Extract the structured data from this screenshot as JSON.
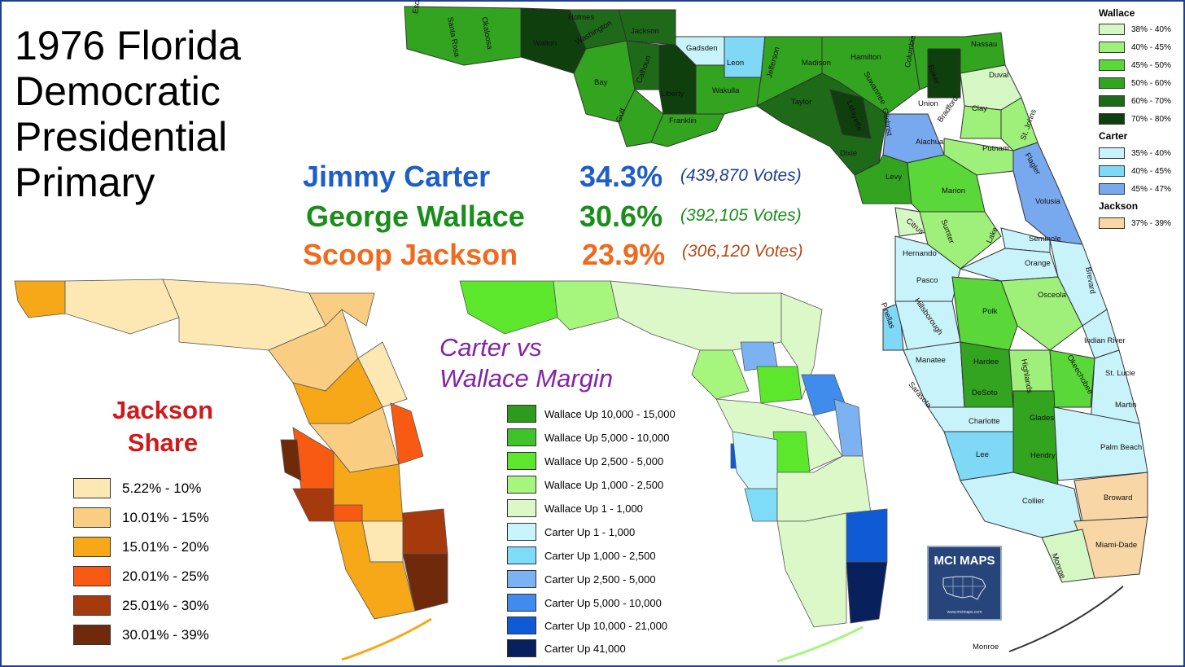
{
  "title": [
    "1976 Florida",
    "Democratic",
    "Presidential",
    "Primary"
  ],
  "results": [
    {
      "name": "Jimmy Carter",
      "pct": "34.3%",
      "votes": "(439,870  Votes)",
      "color": "#1d5fc7"
    },
    {
      "name": "George Wallace",
      "pct": "30.6%",
      "votes": "(392,105  Votes)",
      "color": "#1a8e1a"
    },
    {
      "name": "Scoop Jackson",
      "pct": "23.9%",
      "votes": "(306,120  Votes)",
      "color": "#f06a1e"
    }
  ],
  "jackson_map": {
    "title": [
      "Jackson",
      "Share"
    ],
    "legend": [
      {
        "label": "5.22% - 10%",
        "color": "#fde8b4"
      },
      {
        "label": "10.01% - 15%",
        "color": "#f9cd82"
      },
      {
        "label": "15.01% - 20%",
        "color": "#f6a818"
      },
      {
        "label": "20.01% - 25%",
        "color": "#f95a13"
      },
      {
        "label": "25.01% - 30%",
        "color": "#a63a0c"
      },
      {
        "label": "30.01% - 39%",
        "color": "#6f2a0c"
      }
    ]
  },
  "margin_map": {
    "title": [
      "Carter vs",
      "Wallace Margin"
    ],
    "legend": [
      {
        "label": "Wallace Up 10,000 - 15,000",
        "color": "#2e9a1e"
      },
      {
        "label": "Wallace Up 5,000 - 10,000",
        "color": "#3fc22a"
      },
      {
        "label": "Wallace Up 2,500 - 5,000",
        "color": "#5ce62c"
      },
      {
        "label": "Wallace Up 1,000 - 2,500",
        "color": "#a6f57d"
      },
      {
        "label": "Wallace Up 1 - 1,000",
        "color": "#dcf8c8"
      },
      {
        "label": "Carter Up 1 - 1,000",
        "color": "#c9f4fb"
      },
      {
        "label": "Carter Up 1,000 - 2,500",
        "color": "#7fdcf8"
      },
      {
        "label": "Carter Up 2,500 - 5,000",
        "color": "#7cb2f2"
      },
      {
        "label": "Carter Up 5,000 - 10,000",
        "color": "#3f8ced"
      },
      {
        "label": "Carter Up 10,000 - 21,000",
        "color": "#0f5bd6"
      },
      {
        "label": "Carter Up 41,000",
        "color": "#08205c"
      }
    ]
  },
  "county_map": {
    "legend_groups": [
      {
        "name": "Wallace",
        "items": [
          {
            "label": "38% - 40%",
            "color": "#d5f7c4"
          },
          {
            "label": "40% - 45%",
            "color": "#9ff07a"
          },
          {
            "label": "45% - 50%",
            "color": "#5ad83a"
          },
          {
            "label": "50% - 60%",
            "color": "#33a41f"
          },
          {
            "label": "60% - 70%",
            "color": "#1e6a19"
          },
          {
            "label": "70% - 80%",
            "color": "#0f3f0d"
          }
        ]
      },
      {
        "name": "Carter",
        "items": [
          {
            "label": "35% - 40%",
            "color": "#c8f3fb"
          },
          {
            "label": "40% - 45%",
            "color": "#7fd8f6"
          },
          {
            "label": "45% - 47%",
            "color": "#78a9ee"
          }
        ]
      },
      {
        "name": "Jackson",
        "items": [
          {
            "label": "37% - 39%",
            "color": "#f9d6a6"
          }
        ]
      }
    ],
    "counties": [
      "Escambia",
      "Santa Rosa",
      "Okaloosa",
      "Walton",
      "Holmes",
      "Washington",
      "Jackson",
      "Bay",
      "Calhoun",
      "Gulf",
      "Liberty",
      "Gadsden",
      "Leon",
      "Franklin",
      "Wakulla",
      "Jefferson",
      "Madison",
      "Hamilton",
      "Taylor",
      "Suwannee",
      "Columbia",
      "Lafayette",
      "Gilchrist",
      "Union",
      "Baker",
      "Bradford",
      "Nassau",
      "Duval",
      "Clay",
      "St. Johns",
      "Alachua",
      "Putnam",
      "Flagler",
      "Dixie",
      "Levy",
      "Marion",
      "Volusia",
      "Citrus",
      "Sumter",
      "Lake",
      "Seminole",
      "Hernando",
      "Orange",
      "Brevard",
      "Pasco",
      "Pinellas",
      "Hillsborough",
      "Polk",
      "Osceola",
      "Indian River",
      "Manatee",
      "Hardee",
      "Highlands",
      "Okeechobee",
      "St. Lucie",
      "Sarasota",
      "DeSoto",
      "Martin",
      "Charlotte",
      "Glades",
      "Palm Beach",
      "Lee",
      "Hendry",
      "Broward",
      "Collier",
      "Miami-Dade",
      "Monroe",
      "Monroe"
    ]
  },
  "badge": {
    "title": "MCI MAPS",
    "url": "www.mcimaps.com"
  }
}
